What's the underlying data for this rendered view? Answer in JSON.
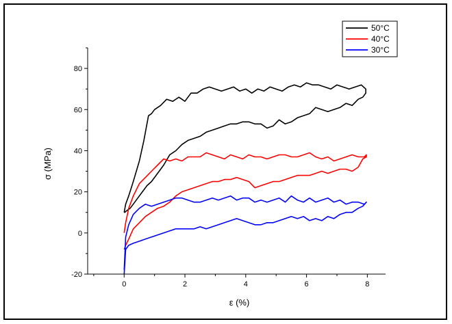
{
  "chart_data": {
    "type": "line",
    "xlabel": "ε (%)",
    "ylabel": "σ (MPa)",
    "xlim": [
      -1.2,
      8.6
    ],
    "ylim": [
      -20,
      90
    ],
    "xticks": [
      0,
      2,
      4,
      6,
      8
    ],
    "yticks": [
      -20,
      0,
      20,
      40,
      60,
      80
    ],
    "grid": false,
    "legend_position": "top-right",
    "series": [
      {
        "name": "50°C",
        "color": "#000000",
        "x": [
          0,
          0.05,
          0.15,
          0.3,
          0.5,
          0.65,
          0.8,
          0.9,
          1.0,
          1.2,
          1.4,
          1.6,
          1.8,
          2.0,
          2.2,
          2.4,
          2.6,
          2.8,
          3.0,
          3.2,
          3.4,
          3.6,
          3.8,
          4.0,
          4.2,
          4.4,
          4.6,
          4.8,
          5.0,
          5.2,
          5.4,
          5.6,
          5.8,
          6.0,
          6.2,
          6.4,
          6.6,
          6.8,
          7.0,
          7.2,
          7.4,
          7.6,
          7.8,
          7.95,
          7.95,
          7.85,
          7.7,
          7.5,
          7.3,
          7.1,
          6.9,
          6.7,
          6.5,
          6.3,
          6.1,
          5.9,
          5.7,
          5.5,
          5.3,
          5.1,
          4.9,
          4.7,
          4.5,
          4.3,
          4.1,
          3.9,
          3.7,
          3.5,
          3.3,
          3.1,
          2.9,
          2.7,
          2.5,
          2.3,
          2.1,
          1.9,
          1.7,
          1.5,
          1.3,
          1.1,
          0.9,
          0.75,
          0.6,
          0.45,
          0.3,
          0.2,
          0.1,
          0.02,
          0
        ],
        "y": [
          10,
          14,
          18,
          25,
          35,
          45,
          57,
          58,
          60,
          62,
          65,
          64,
          66,
          64,
          68,
          68,
          70,
          71,
          70,
          69,
          70,
          71,
          69,
          70,
          68,
          70,
          69,
          71,
          70,
          69,
          71,
          72,
          71,
          73,
          72,
          72,
          71,
          70,
          72,
          71,
          70,
          71,
          72,
          70,
          68,
          66,
          65,
          62,
          63,
          61,
          60,
          59,
          60,
          61,
          58,
          57,
          56,
          54,
          53,
          55,
          52,
          51,
          53,
          53,
          54,
          54,
          53,
          53,
          52,
          51,
          50,
          49,
          47,
          46,
          45,
          43,
          40,
          38,
          33,
          29,
          25,
          23,
          20,
          17,
          14,
          12,
          11,
          10,
          10
        ]
      },
      {
        "name": "40°C",
        "color": "#ff0000",
        "x": [
          0,
          0.05,
          0.15,
          0.3,
          0.5,
          0.7,
          0.9,
          1.1,
          1.3,
          1.5,
          1.7,
          1.9,
          2.1,
          2.3,
          2.5,
          2.7,
          2.9,
          3.1,
          3.3,
          3.5,
          3.7,
          3.9,
          4.1,
          4.3,
          4.5,
          4.7,
          4.9,
          5.1,
          5.3,
          5.5,
          5.7,
          5.9,
          6.1,
          6.3,
          6.5,
          6.7,
          6.9,
          7.1,
          7.3,
          7.5,
          7.7,
          7.9,
          7.97,
          7.97,
          7.85,
          7.7,
          7.5,
          7.3,
          7.1,
          6.9,
          6.7,
          6.5,
          6.3,
          6.1,
          5.9,
          5.7,
          5.5,
          5.3,
          5.1,
          4.9,
          4.7,
          4.5,
          4.3,
          4.1,
          3.9,
          3.7,
          3.5,
          3.3,
          3.1,
          2.9,
          2.7,
          2.5,
          2.3,
          2.1,
          1.9,
          1.7,
          1.5,
          1.3,
          1.1,
          0.9,
          0.7,
          0.5,
          0.3,
          0.15,
          0.05,
          0
        ],
        "y": [
          0,
          5,
          12,
          18,
          24,
          27,
          30,
          33,
          36,
          35,
          36,
          35,
          37,
          37,
          37,
          39,
          38,
          37,
          36,
          38,
          37,
          36,
          38,
          37,
          37,
          36,
          37,
          38,
          38,
          37,
          37,
          38,
          39,
          37,
          36,
          37,
          35,
          36,
          37,
          38,
          37,
          37,
          38,
          37,
          36,
          32,
          30,
          31,
          31,
          30,
          29,
          30,
          29,
          28,
          28,
          28,
          27,
          26,
          25,
          25,
          24,
          23,
          22,
          25,
          26,
          27,
          26,
          26,
          25,
          25,
          24,
          23,
          22,
          21,
          20,
          18,
          15,
          13,
          12,
          10,
          8,
          5,
          2,
          -3,
          -6,
          -8
        ]
      },
      {
        "name": "30°C",
        "color": "#0000ff",
        "x": [
          0,
          0.05,
          0.15,
          0.3,
          0.5,
          0.7,
          0.9,
          1.1,
          1.3,
          1.5,
          1.7,
          1.9,
          2.1,
          2.3,
          2.5,
          2.7,
          2.9,
          3.1,
          3.3,
          3.5,
          3.7,
          3.9,
          4.1,
          4.3,
          4.5,
          4.7,
          4.9,
          5.1,
          5.3,
          5.5,
          5.7,
          5.9,
          6.1,
          6.3,
          6.5,
          6.7,
          6.9,
          7.1,
          7.3,
          7.5,
          7.7,
          7.9,
          7.97,
          7.97,
          7.85,
          7.7,
          7.5,
          7.3,
          7.1,
          6.9,
          6.7,
          6.5,
          6.3,
          6.1,
          5.9,
          5.7,
          5.5,
          5.3,
          5.1,
          4.9,
          4.7,
          4.5,
          4.3,
          4.1,
          3.9,
          3.7,
          3.5,
          3.3,
          3.1,
          2.9,
          2.7,
          2.5,
          2.3,
          2.1,
          1.9,
          1.7,
          1.5,
          1.3,
          1.1,
          0.9,
          0.7,
          0.5,
          0.3,
          0.15,
          0.05,
          0
        ],
        "y": [
          -18,
          -2,
          4,
          9,
          12,
          14,
          13,
          14,
          15,
          16,
          17,
          17,
          16,
          15,
          15,
          16,
          17,
          16,
          17,
          18,
          16,
          17,
          17,
          15,
          16,
          15,
          16,
          17,
          15,
          18,
          16,
          15,
          17,
          15,
          16,
          17,
          15,
          16,
          14,
          15,
          15,
          14,
          15,
          15,
          13,
          12,
          10,
          10,
          9,
          7,
          8,
          6,
          7,
          6,
          8,
          7,
          8,
          7,
          6,
          5,
          5,
          4,
          4,
          5,
          6,
          7,
          6,
          5,
          4,
          3,
          2,
          3,
          2,
          2,
          2,
          2,
          1,
          0,
          -1,
          -2,
          -3,
          -4,
          -5,
          -6,
          -8,
          -20
        ]
      }
    ]
  }
}
